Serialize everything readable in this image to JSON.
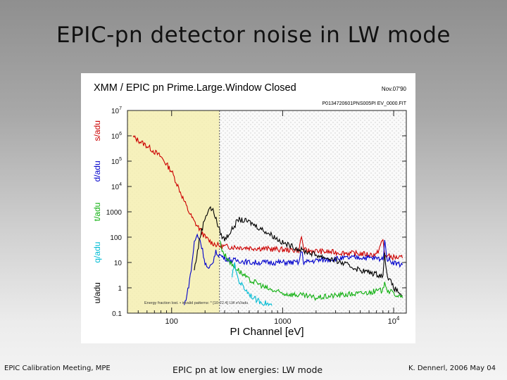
{
  "slide": {
    "title": "EPIC-pn detector noise in LW mode",
    "footer_left": "EPIC Calibration Meeting, MPE",
    "footer_center": "EPIC pn at low energies: LW mode",
    "footer_right": "K. Dennerl, 2006 May 04"
  },
  "chart_data": {
    "type": "line",
    "title": "XMM / EPIC pn Prime.Large.Window Closed",
    "date_label": "Nov.07'90",
    "file_label": "P0134720601PNS005PI EV_0000.FIT",
    "xlabel": "PI Channel [eV]",
    "xscale": "log",
    "xlim": [
      40,
      13000
    ],
    "x_tick_labels": [
      "100",
      "1000",
      "10^4"
    ],
    "ylabel_stack": [
      "u/adu",
      "q/adu",
      "t/adu",
      "d/adu",
      "s/adu"
    ],
    "ylabel_colors": [
      "#000000",
      "#00bcd4",
      "#10b010",
      "#0000cc",
      "#cc0000"
    ],
    "yscale": "log",
    "ylim": [
      0.1,
      10000000
    ],
    "y_tick_labels": [
      "0.1",
      "1",
      "10",
      "100",
      "1000",
      "10^4",
      "10^5",
      "10^6",
      "10^7"
    ],
    "grid": true,
    "shaded_region": {
      "x_from": 40,
      "x_to": 270,
      "color": "#f5eeb0"
    },
    "annotation": "Energy fraction lost. • invalid patterns: * [10-22.4] LW eV/adu",
    "series": [
      {
        "name": "s/adu",
        "color": "#cc0000",
        "x": [
          45,
          60,
          80,
          100,
          120,
          140,
          160,
          180,
          200,
          230,
          270,
          320,
          400,
          500,
          700,
          1000,
          1400,
          1480,
          1550,
          2000,
          3000,
          5000,
          7000,
          8000,
          8300,
          8800,
          10000,
          12000
        ],
        "y": [
          900000,
          400000,
          150000,
          40000,
          6000,
          1200,
          400,
          200,
          100,
          60,
          45,
          42,
          40,
          38,
          35,
          32,
          30,
          110,
          30,
          28,
          25,
          22,
          20,
          80,
          20,
          18,
          16,
          15
        ]
      },
      {
        "name": "d/adu",
        "color": "#0000cc",
        "x": [
          130,
          140,
          150,
          160,
          170,
          180,
          190,
          200,
          215,
          230,
          250,
          270,
          300,
          350,
          400,
          500,
          600,
          800,
          1000,
          1400,
          1480,
          1550,
          2000,
          3000,
          5000,
          8000,
          8300,
          8800,
          10000,
          12000
        ],
        "y": [
          0.2,
          0.8,
          5,
          60,
          120,
          80,
          30,
          10,
          5,
          8,
          25,
          20,
          15,
          12,
          12,
          10,
          10,
          10,
          10,
          10,
          30,
          10,
          12,
          14,
          16,
          14,
          60,
          14,
          10,
          8
        ]
      },
      {
        "name": "u/adu",
        "color": "#000000",
        "x": [
          160,
          180,
          200,
          220,
          240,
          260,
          280,
          300,
          350,
          400,
          500,
          600,
          800,
          1000,
          1500,
          2000,
          3000,
          5000,
          8000,
          8300,
          8800,
          10000,
          12000
        ],
        "y": [
          5,
          100,
          600,
          1500,
          1000,
          300,
          120,
          80,
          200,
          500,
          400,
          250,
          120,
          60,
          30,
          20,
          12,
          5,
          3,
          20,
          3,
          1,
          0.5
        ]
      },
      {
        "name": "t/adu",
        "color": "#10b010",
        "x": [
          270,
          280,
          300,
          330,
          350,
          400,
          450,
          500,
          600,
          700,
          800,
          1000,
          1500,
          2000,
          3000,
          5000,
          8000,
          8300,
          8800,
          10000,
          12000
        ],
        "y": [
          80,
          40,
          20,
          12,
          8,
          5,
          3,
          2,
          1.5,
          1,
          0.8,
          0.6,
          0.5,
          0.4,
          0.5,
          0.6,
          0.8,
          2,
          0.8,
          0.6,
          0.4
        ]
      },
      {
        "name": "q/adu",
        "color": "#00bcd4",
        "x": [
          350,
          370,
          400,
          450,
          500,
          550,
          600,
          700,
          800
        ],
        "y": [
          3,
          8,
          2,
          1,
          0.6,
          0.4,
          0.3,
          0.25,
          0.2
        ]
      }
    ]
  }
}
